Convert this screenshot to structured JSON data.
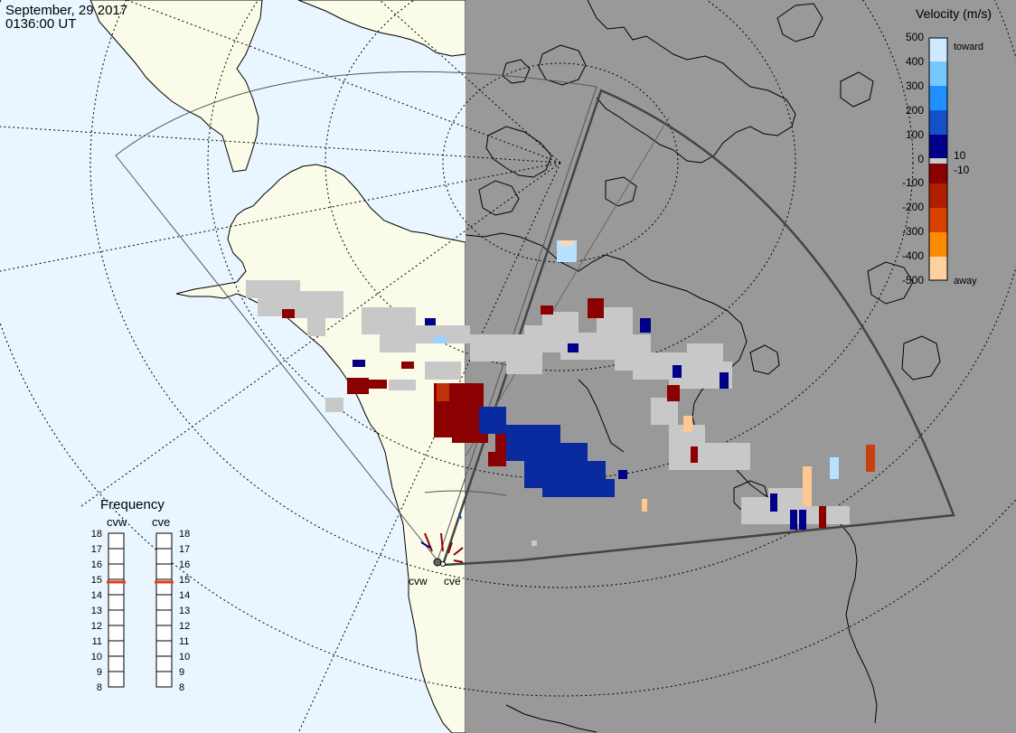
{
  "header": {
    "date": "September, 29 2017",
    "time": "0136:00 UT"
  },
  "colors": {
    "ocean": "#e9f6ff",
    "land_day": "#fbfbe9",
    "night_shade": "#999999",
    "ground_scatter": "#c8c8c8",
    "fov_line": "#444444"
  },
  "colorbar": {
    "title": "Velocity (m/s)",
    "tick_labels": [
      "500",
      "400",
      "300",
      "200",
      "100",
      "10",
      "0",
      "-10",
      "-100",
      "-200",
      "-300",
      "-400",
      "-500"
    ],
    "toward_label": "toward",
    "away_label": "away"
  },
  "frequency_panel": {
    "title": "Frequency",
    "radars": [
      {
        "name": "cvw",
        "selected_mhz": 15
      },
      {
        "name": "cve",
        "selected_mhz": 15
      }
    ],
    "scale": [
      "18",
      "17",
      "16",
      "15",
      "14",
      "13",
      "12",
      "11",
      "10",
      "9",
      "8"
    ]
  },
  "sites": [
    {
      "label": "cvw"
    },
    {
      "label": "cve"
    }
  ]
}
